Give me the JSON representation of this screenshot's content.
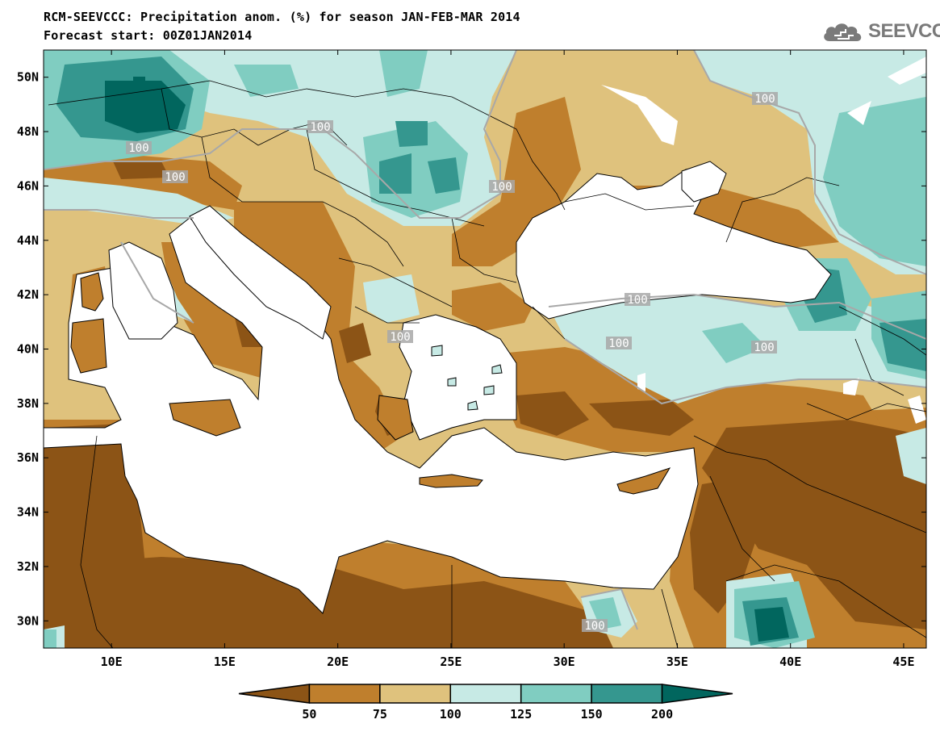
{
  "title": {
    "line1": "RCM-SEEVCCC: Precipitation anom. (%) for season JAN-FEB-MAR 2014",
    "line2": "Forecast start: 00Z01JAN2014"
  },
  "logo": {
    "text": "SEEVCCC",
    "icon": "cloud-icon"
  },
  "map": {
    "lon_range": [
      7,
      46
    ],
    "lat_range": [
      29,
      51
    ],
    "lon_ticks": [
      {
        "value": 10,
        "label": "10E"
      },
      {
        "value": 15,
        "label": "15E"
      },
      {
        "value": 20,
        "label": "20E"
      },
      {
        "value": 25,
        "label": "25E"
      },
      {
        "value": 30,
        "label": "30E"
      },
      {
        "value": 35,
        "label": "35E"
      },
      {
        "value": 40,
        "label": "40E"
      },
      {
        "value": 45,
        "label": "45E"
      }
    ],
    "lat_ticks": [
      {
        "value": 30,
        "label": "30N"
      },
      {
        "value": 32,
        "label": "32N"
      },
      {
        "value": 34,
        "label": "34N"
      },
      {
        "value": 36,
        "label": "36N"
      },
      {
        "value": 38,
        "label": "38N"
      },
      {
        "value": 40,
        "label": "40N"
      },
      {
        "value": 42,
        "label": "42N"
      },
      {
        "value": 44,
        "label": "44N"
      },
      {
        "value": 46,
        "label": "46N"
      },
      {
        "value": 48,
        "label": "48N"
      },
      {
        "value": 50,
        "label": "50N"
      }
    ],
    "contour_labels": [
      "100",
      "100",
      "100",
      "100",
      "100",
      "100",
      "100",
      "100",
      "100",
      "100"
    ],
    "colors": {
      "lt50": "#8c5416",
      "c50_75": "#bf7f2d",
      "c75_100": "#dfc27d",
      "c100_125": "#c7eae5",
      "c125_150": "#80cdc1",
      "c150_200": "#35978f",
      "gt200": "#01665e",
      "sea": "#ffffff",
      "contour": "#a8a8a8"
    }
  },
  "legend": {
    "levels": [
      "50",
      "75",
      "100",
      "125",
      "150",
      "200"
    ],
    "colors": [
      "#8c5416",
      "#bf7f2d",
      "#dfc27d",
      "#c7eae5",
      "#80cdc1",
      "#35978f",
      "#01665e"
    ]
  }
}
